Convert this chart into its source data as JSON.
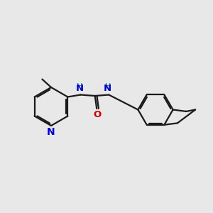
{
  "background_color": "#e8e8e8",
  "bond_color": "#1a1a1a",
  "N_color": "#0000cc",
  "O_color": "#cc0000",
  "NH_color": "#008080",
  "line_width": 1.6,
  "font_size": 9.5,
  "xlim": [
    0,
    10
  ],
  "ylim": [
    0,
    10
  ]
}
